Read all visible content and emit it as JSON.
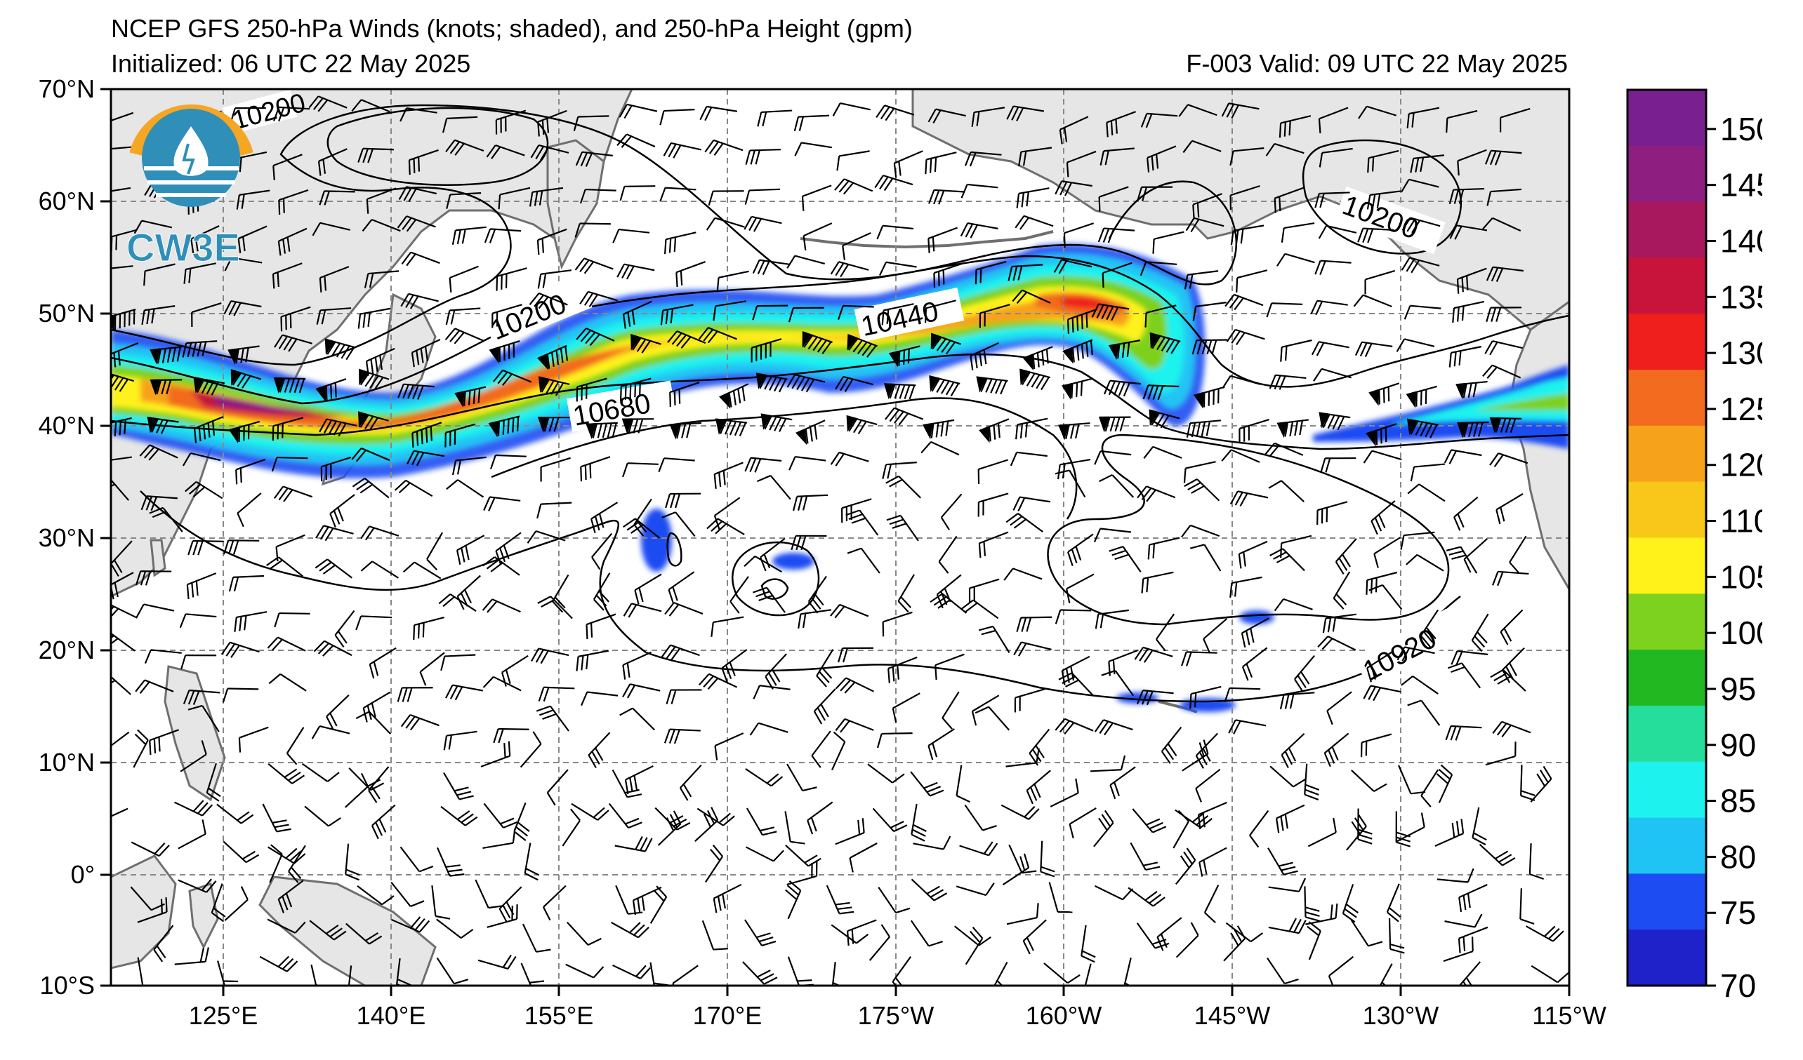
{
  "header": {
    "title": "NCEP GFS 250-hPa Winds (knots; shaded), and 250-hPa Height (gpm)",
    "initialized": "Initialized: 06 UTC 22 May 2025",
    "valid": "F-003  Valid: 09 UTC 22 May 2025"
  },
  "logo": {
    "text": "CW3E"
  },
  "axes": {
    "lat_labels": [
      "70°N",
      "60°N",
      "50°N",
      "40°N",
      "30°N",
      "20°N",
      "10°N",
      "0°",
      "10°S"
    ],
    "lon_labels": [
      "125°E",
      "140°E",
      "155°E",
      "170°E",
      "175°W",
      "160°W",
      "145°W",
      "130°W",
      "115°W"
    ]
  },
  "contour_labels": [
    "10200",
    "10200",
    "10200",
    "10440",
    "10680",
    "10920"
  ],
  "colorbar": {
    "ticks": [
      "150",
      "145",
      "140",
      "135",
      "130",
      "125",
      "120",
      "110",
      "105",
      "100",
      "95",
      "90",
      "85",
      "80",
      "75",
      "70"
    ],
    "colors": [
      "#7a1f8f",
      "#8e1f80",
      "#a8185f",
      "#c8143a",
      "#ee1f1c",
      "#f26b1f",
      "#f7a21b",
      "#f9c71a",
      "#fff21a",
      "#7dd11f",
      "#22b822",
      "#26de9c",
      "#1ef2ee",
      "#20c4f4",
      "#1d4cf2",
      "#1f22c8"
    ]
  }
}
